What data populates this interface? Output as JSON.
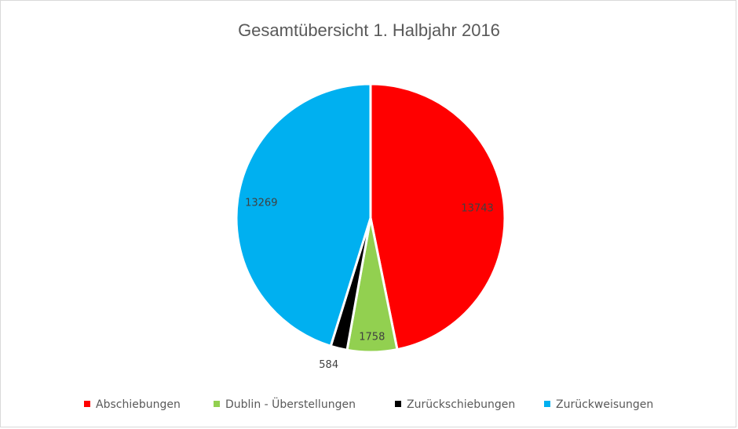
{
  "chart_data": {
    "type": "pie",
    "title": "Gesamtübersicht 1. Halbjahr 2016",
    "legend_position": "bottom",
    "slices": [
      {
        "name": "Abschiebungen",
        "value": 13743,
        "label": "13743",
        "color": "#ff0000"
      },
      {
        "name": "Dublin - Überstellungen",
        "value": 1758,
        "label": "1758",
        "color": "#92d050"
      },
      {
        "name": "Zurückschiebungen",
        "value": 584,
        "label": "584",
        "color": "#000000"
      },
      {
        "name": "Zurückweisungen",
        "value": 13269,
        "label": "13269",
        "color": "#00b0f0"
      }
    ]
  }
}
